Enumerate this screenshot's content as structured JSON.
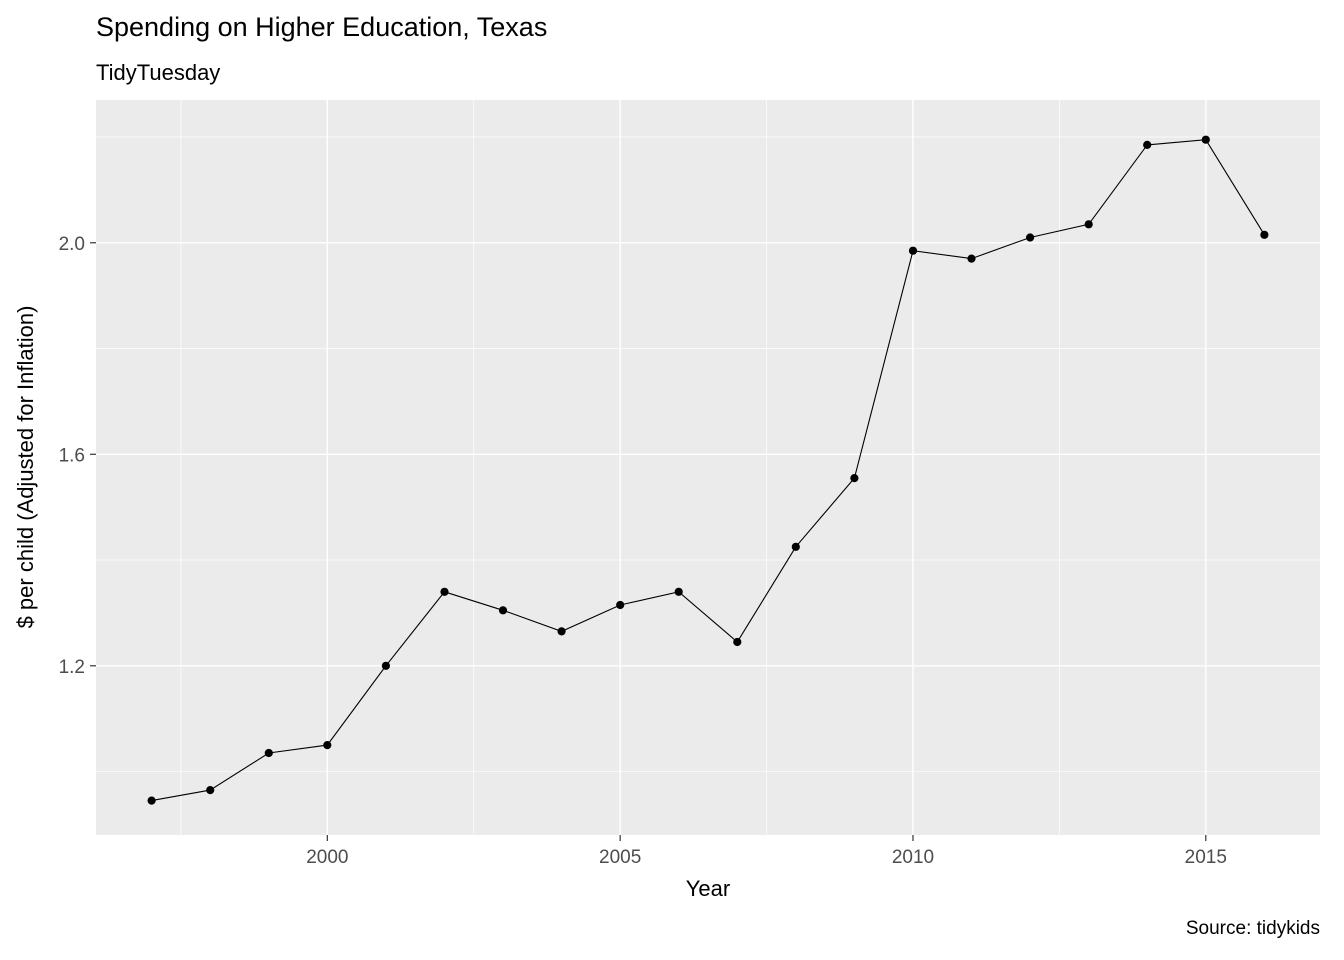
{
  "chart_data": {
    "type": "line",
    "title": "Spending on Higher Education, Texas",
    "subtitle": "TidyTuesday",
    "xlabel": "Year",
    "ylabel": "$ per child (Adjusted for Inflation)",
    "caption": "Source: tidykids",
    "x": [
      1997,
      1998,
      1999,
      2000,
      2001,
      2002,
      2003,
      2004,
      2005,
      2006,
      2007,
      2008,
      2009,
      2010,
      2011,
      2012,
      2013,
      2014,
      2015,
      2016
    ],
    "y": [
      0.945,
      0.965,
      1.035,
      1.05,
      1.2,
      1.34,
      1.305,
      1.265,
      1.315,
      1.34,
      1.245,
      1.425,
      1.555,
      1.985,
      1.97,
      2.01,
      2.035,
      2.185,
      2.195,
      2.015
    ],
    "x_ticks": [
      2000,
      2005,
      2010,
      2015
    ],
    "y_ticks": [
      1.2,
      1.6,
      2.0
    ],
    "x_minor": [
      1997.5,
      2002.5,
      2007.5,
      2012.5
    ],
    "y_minor": [
      1.0,
      1.4,
      1.8,
      2.2
    ],
    "xlim": [
      1996.05,
      2016.95
    ],
    "ylim": [
      0.88,
      2.27
    ],
    "grid": "on",
    "legend": "none",
    "colors": {
      "panel_background": "#EBEBEB",
      "gridline": "#FFFFFF",
      "line": "#000000",
      "point": "#000000",
      "tick_label": "#4D4D4D",
      "tick_mark": "#333333",
      "text": "#000000"
    }
  }
}
